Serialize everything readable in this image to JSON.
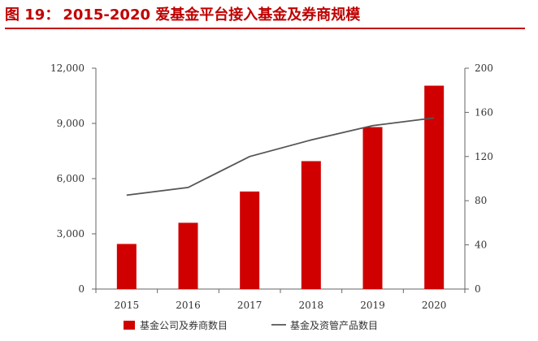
{
  "header": {
    "figure_label": "图 19：",
    "title": "2015-2020 爱基金平台接入基金及券商规模"
  },
  "chart_data": {
    "type": "bar",
    "categories": [
      "2015",
      "2016",
      "2017",
      "2018",
      "2019",
      "2020"
    ],
    "series": [
      {
        "name": "基金公司及券商数目",
        "type": "bar",
        "axis": "left",
        "color": "#d00000",
        "values": [
          2450,
          3600,
          5300,
          6950,
          8800,
          11050
        ]
      },
      {
        "name": "基金及资管产品数目",
        "type": "line",
        "axis": "right",
        "color": "#555555",
        "values": [
          85,
          92,
          120,
          135,
          148,
          155
        ]
      }
    ],
    "y_left": {
      "min": 0,
      "max": 12000,
      "ticks": [
        0,
        3000,
        6000,
        9000,
        12000
      ],
      "tick_labels": [
        "0",
        "3,000",
        "6,000",
        "9,000",
        "12,000"
      ]
    },
    "y_right": {
      "min": 0,
      "max": 200,
      "ticks": [
        0,
        40,
        80,
        120,
        160,
        200
      ],
      "tick_labels": [
        "0",
        "40",
        "80",
        "120",
        "160",
        "200"
      ]
    },
    "grid": false,
    "legend_position": "bottom"
  }
}
